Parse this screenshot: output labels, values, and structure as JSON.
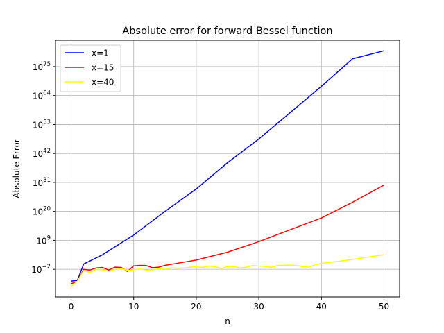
{
  "chart_data": {
    "type": "line",
    "title": "Absolute error for forward Bessel function",
    "xlabel": "n",
    "ylabel": "Absolute Error",
    "xlim": [
      -2.5,
      52.5
    ],
    "ylim_log10": [
      -12.5,
      85
    ],
    "yscale": "log",
    "grid": true,
    "legend_position": "upper left",
    "x_ticks": [
      0,
      10,
      20,
      30,
      40,
      50
    ],
    "y_ticks": [
      {
        "base": "10",
        "exp": "−2",
        "log10": -2
      },
      {
        "base": "10",
        "exp": "9",
        "log10": 9
      },
      {
        "base": "10",
        "exp": "20",
        "log10": 20
      },
      {
        "base": "10",
        "exp": "31",
        "log10": 31
      },
      {
        "base": "10",
        "exp": "42",
        "log10": 42
      },
      {
        "base": "10",
        "exp": "53",
        "log10": 53
      },
      {
        "base": "10",
        "exp": "64",
        "log10": 64
      },
      {
        "base": "10",
        "exp": "75",
        "log10": 75
      }
    ],
    "series": [
      {
        "name": "x=1",
        "color": "#0000ff",
        "x": [
          0,
          1,
          2,
          5,
          10,
          15,
          20,
          25,
          30,
          35,
          40,
          45,
          50
        ],
        "log10_y": [
          -6.5,
          -6.2,
          0,
          3.5,
          11,
          20,
          28.5,
          38.5,
          47.5,
          57.5,
          67.5,
          78,
          81
        ]
      },
      {
        "name": "x=15",
        "color": "#ff0000",
        "x": [
          0,
          1,
          2,
          3,
          4,
          5,
          6,
          7,
          8,
          9,
          10,
          11,
          12,
          13,
          14,
          15,
          20,
          25,
          30,
          35,
          40,
          45,
          50
        ],
        "log10_y": [
          -7.5,
          -6.6,
          -2,
          -2.3,
          -1.5,
          -1.3,
          -2.3,
          -1.2,
          -1.3,
          -2.8,
          -0.7,
          -0.5,
          -0.6,
          -1.4,
          -1.2,
          -0.5,
          1.5,
          4.5,
          8.5,
          13,
          17.5,
          23.5,
          30
        ]
      },
      {
        "name": "x=40",
        "color": "#ffff00",
        "x": [
          0,
          1,
          2,
          3,
          4,
          5,
          6,
          7,
          8,
          9,
          10,
          11,
          12,
          13,
          14,
          15,
          16,
          17,
          18,
          19,
          20,
          21,
          22,
          23,
          24,
          25,
          26,
          27,
          28,
          29,
          30,
          31,
          32,
          33,
          34,
          35,
          36,
          37,
          38,
          39,
          40,
          42,
          44,
          46,
          48,
          50
        ],
        "log10_y": [
          -8.5,
          -6.5,
          -2.5,
          -3.2,
          -2,
          -2.2,
          -2.8,
          -2.1,
          -1.8,
          -2.4,
          -2.2,
          -1.9,
          -2.3,
          -2.2,
          -1.7,
          -2.1,
          -1.4,
          -1.6,
          -1.5,
          -1.2,
          -1.1,
          -1.3,
          -0.8,
          -1,
          -1.7,
          -1,
          -0.9,
          -1.5,
          -1.2,
          -0.6,
          -0.8,
          -0.9,
          -1.3,
          -0.5,
          -0.5,
          -0.4,
          -0.6,
          -1,
          -1.2,
          -0.3,
          0.2,
          0.8,
          1.4,
          2.1,
          2.8,
          3.5
        ]
      }
    ]
  }
}
